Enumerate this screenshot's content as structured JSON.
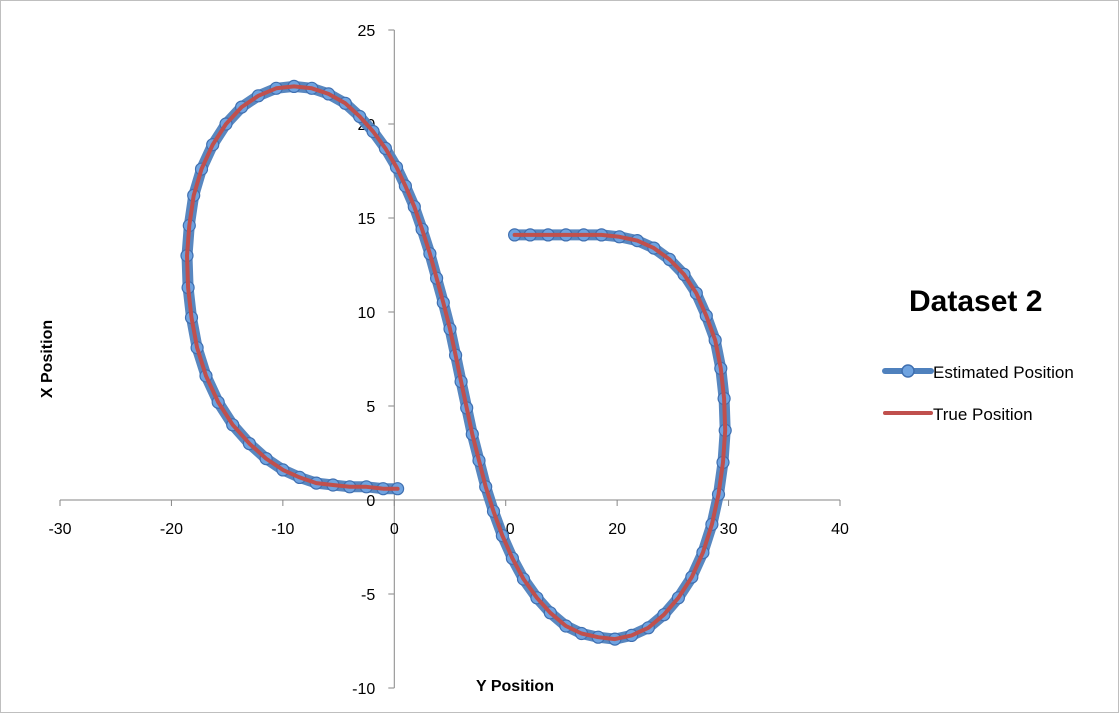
{
  "chart_data": {
    "type": "scatter",
    "title": "Dataset 2",
    "xlabel": "Y Position",
    "ylabel": "X Position",
    "xlim": [
      -30,
      40
    ],
    "ylim": [
      -10,
      25
    ],
    "x_ticks": [
      -30,
      -20,
      -10,
      0,
      10,
      20,
      30,
      40
    ],
    "y_ticks": [
      -10,
      -5,
      0,
      5,
      10,
      15,
      20,
      25
    ],
    "x_tick_labels": [
      "-30",
      "-20",
      "-10",
      "0",
      "10",
      "20",
      "30",
      "40"
    ],
    "y_tick_labels": [
      "-10",
      "-5",
      "0",
      "5",
      "10",
      "15",
      "20",
      "25"
    ],
    "grid": false,
    "legend_position": "right",
    "series": [
      {
        "name": "Estimated Position",
        "color": "#4f81bd",
        "marker": "circle",
        "line": true,
        "points": [
          [
            0.3,
            0.6
          ],
          [
            -1,
            0.6
          ],
          [
            -2.5,
            0.7
          ],
          [
            -4,
            0.7
          ],
          [
            -5.5,
            0.8
          ],
          [
            -7,
            0.9
          ],
          [
            -8.5,
            1.2
          ],
          [
            -10,
            1.6
          ],
          [
            -11.5,
            2.2
          ],
          [
            -13,
            3.0
          ],
          [
            -14.5,
            4.0
          ],
          [
            -15.8,
            5.2
          ],
          [
            -16.9,
            6.6
          ],
          [
            -17.7,
            8.1
          ],
          [
            -18.2,
            9.7
          ],
          [
            -18.5,
            11.3
          ],
          [
            -18.6,
            13.0
          ],
          [
            -18.4,
            14.6
          ],
          [
            -18.0,
            16.2
          ],
          [
            -17.3,
            17.6
          ],
          [
            -16.3,
            18.9
          ],
          [
            -15.1,
            20.0
          ],
          [
            -13.7,
            20.9
          ],
          [
            -12.2,
            21.5
          ],
          [
            -10.6,
            21.9
          ],
          [
            -9.0,
            22.0
          ],
          [
            -7.4,
            21.9
          ],
          [
            -5.9,
            21.6
          ],
          [
            -4.4,
            21.1
          ],
          [
            -3.1,
            20.4
          ],
          [
            -1.9,
            19.6
          ],
          [
            -0.8,
            18.7
          ],
          [
            0.2,
            17.7
          ],
          [
            1.0,
            16.7
          ],
          [
            1.8,
            15.6
          ],
          [
            2.5,
            14.4
          ],
          [
            3.2,
            13.1
          ],
          [
            3.8,
            11.8
          ],
          [
            4.4,
            10.5
          ],
          [
            5.0,
            9.1
          ],
          [
            5.5,
            7.7
          ],
          [
            6.0,
            6.3
          ],
          [
            6.5,
            4.9
          ],
          [
            7.0,
            3.5
          ],
          [
            7.6,
            2.1
          ],
          [
            8.2,
            0.7
          ],
          [
            8.9,
            -0.6
          ],
          [
            9.7,
            -1.9
          ],
          [
            10.6,
            -3.1
          ],
          [
            11.6,
            -4.2
          ],
          [
            12.8,
            -5.2
          ],
          [
            14.0,
            -6.0
          ],
          [
            15.4,
            -6.7
          ],
          [
            16.8,
            -7.1
          ],
          [
            18.3,
            -7.3
          ],
          [
            19.8,
            -7.4
          ],
          [
            21.3,
            -7.2
          ],
          [
            22.8,
            -6.8
          ],
          [
            24.2,
            -6.1
          ],
          [
            25.5,
            -5.2
          ],
          [
            26.7,
            -4.1
          ],
          [
            27.7,
            -2.8
          ],
          [
            28.5,
            -1.3
          ],
          [
            29.1,
            0.3
          ],
          [
            29.5,
            2.0
          ],
          [
            29.7,
            3.7
          ],
          [
            29.6,
            5.4
          ],
          [
            29.3,
            7.0
          ],
          [
            28.8,
            8.5
          ],
          [
            28.0,
            9.8
          ],
          [
            27.1,
            11.0
          ],
          [
            26.0,
            12.0
          ],
          [
            24.7,
            12.8
          ],
          [
            23.3,
            13.4
          ],
          [
            21.8,
            13.8
          ],
          [
            20.2,
            14.0
          ],
          [
            18.6,
            14.1
          ],
          [
            17.0,
            14.1
          ],
          [
            15.4,
            14.1
          ],
          [
            13.8,
            14.1
          ],
          [
            12.2,
            14.1
          ],
          [
            10.8,
            14.1
          ]
        ]
      },
      {
        "name": "True Position",
        "color": "#c0504d",
        "marker": "none",
        "line": true,
        "points": [
          [
            0.3,
            0.6
          ],
          [
            -1,
            0.6
          ],
          [
            -2.5,
            0.7
          ],
          [
            -4,
            0.7
          ],
          [
            -5.5,
            0.8
          ],
          [
            -7,
            0.9
          ],
          [
            -8.5,
            1.2
          ],
          [
            -10,
            1.6
          ],
          [
            -11.5,
            2.2
          ],
          [
            -13,
            3.0
          ],
          [
            -14.5,
            4.0
          ],
          [
            -15.8,
            5.2
          ],
          [
            -16.9,
            6.6
          ],
          [
            -17.7,
            8.1
          ],
          [
            -18.2,
            9.7
          ],
          [
            -18.5,
            11.3
          ],
          [
            -18.6,
            13.0
          ],
          [
            -18.4,
            14.6
          ],
          [
            -18.0,
            16.2
          ],
          [
            -17.3,
            17.6
          ],
          [
            -16.3,
            18.9
          ],
          [
            -15.1,
            20.0
          ],
          [
            -13.7,
            20.9
          ],
          [
            -12.2,
            21.5
          ],
          [
            -10.6,
            21.9
          ],
          [
            -9.0,
            22.0
          ],
          [
            -7.4,
            21.9
          ],
          [
            -5.9,
            21.6
          ],
          [
            -4.4,
            21.1
          ],
          [
            -3.1,
            20.4
          ],
          [
            -1.9,
            19.6
          ],
          [
            -0.8,
            18.7
          ],
          [
            0.2,
            17.7
          ],
          [
            1.0,
            16.7
          ],
          [
            1.8,
            15.6
          ],
          [
            2.5,
            14.4
          ],
          [
            3.2,
            13.1
          ],
          [
            3.8,
            11.8
          ],
          [
            4.4,
            10.5
          ],
          [
            5.0,
            9.1
          ],
          [
            5.5,
            7.7
          ],
          [
            6.0,
            6.3
          ],
          [
            6.5,
            4.9
          ],
          [
            7.0,
            3.5
          ],
          [
            7.6,
            2.1
          ],
          [
            8.2,
            0.7
          ],
          [
            8.9,
            -0.6
          ],
          [
            9.7,
            -1.9
          ],
          [
            10.6,
            -3.1
          ],
          [
            11.6,
            -4.2
          ],
          [
            12.8,
            -5.2
          ],
          [
            14.0,
            -6.0
          ],
          [
            15.4,
            -6.7
          ],
          [
            16.8,
            -7.1
          ],
          [
            18.3,
            -7.3
          ],
          [
            19.8,
            -7.4
          ],
          [
            21.3,
            -7.2
          ],
          [
            22.8,
            -6.8
          ],
          [
            24.2,
            -6.1
          ],
          [
            25.5,
            -5.2
          ],
          [
            26.7,
            -4.1
          ],
          [
            27.7,
            -2.8
          ],
          [
            28.5,
            -1.3
          ],
          [
            29.1,
            0.3
          ],
          [
            29.5,
            2.0
          ],
          [
            29.7,
            3.7
          ],
          [
            29.6,
            5.4
          ],
          [
            29.3,
            7.0
          ],
          [
            28.8,
            8.5
          ],
          [
            28.0,
            9.8
          ],
          [
            27.1,
            11.0
          ],
          [
            26.0,
            12.0
          ],
          [
            24.7,
            12.8
          ],
          [
            23.3,
            13.4
          ],
          [
            21.8,
            13.8
          ],
          [
            20.2,
            14.0
          ],
          [
            18.6,
            14.1
          ],
          [
            17.0,
            14.1
          ],
          [
            15.4,
            14.1
          ],
          [
            13.8,
            14.1
          ],
          [
            12.2,
            14.1
          ],
          [
            10.8,
            14.1
          ]
        ]
      }
    ]
  }
}
